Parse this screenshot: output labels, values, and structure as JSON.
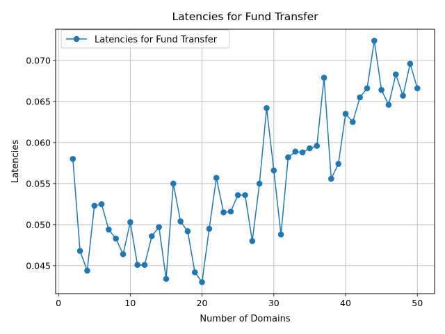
{
  "chart_data": {
    "type": "line",
    "title": "Latencies for Fund Transfer",
    "xlabel": "Number of Domains",
    "ylabel": "Latencies",
    "xlim": [
      -0.4,
      52.4
    ],
    "ylim": [
      0.0416,
      0.0738
    ],
    "xticks": [
      0,
      10,
      20,
      30,
      40,
      50
    ],
    "xtick_labels": [
      "0",
      "10",
      "20",
      "30",
      "40",
      "50"
    ],
    "yticks": [
      0.045,
      0.05,
      0.055,
      0.06,
      0.065,
      0.07
    ],
    "ytick_labels": [
      "0.045",
      "0.050",
      "0.055",
      "0.060",
      "0.065",
      "0.070"
    ],
    "grid": true,
    "legend_position": "upper-left",
    "series": [
      {
        "name": "Latencies for Fund Transfer",
        "color": "#1f77b4",
        "marker": "circle",
        "x": [
          2,
          3,
          4,
          5,
          6,
          7,
          8,
          9,
          10,
          11,
          12,
          13,
          14,
          15,
          16,
          17,
          18,
          19,
          20,
          21,
          22,
          23,
          24,
          25,
          26,
          27,
          28,
          29,
          30,
          31,
          32,
          33,
          34,
          35,
          36,
          37,
          38,
          39,
          40,
          41,
          42,
          43,
          44,
          45,
          46,
          47,
          48,
          49,
          50
        ],
        "y": [
          0.058,
          0.0468,
          0.0444,
          0.0523,
          0.0525,
          0.0494,
          0.0483,
          0.0464,
          0.0503,
          0.0451,
          0.0451,
          0.0486,
          0.0497,
          0.0434,
          0.055,
          0.0504,
          0.0492,
          0.0442,
          0.043,
          0.0495,
          0.0557,
          0.0515,
          0.0516,
          0.0536,
          0.0536,
          0.048,
          0.055,
          0.0642,
          0.0566,
          0.0488,
          0.0582,
          0.0589,
          0.0588,
          0.0593,
          0.0596,
          0.0679,
          0.0556,
          0.0574,
          0.0635,
          0.0625,
          0.0655,
          0.0666,
          0.0724,
          0.0664,
          0.0646,
          0.0683,
          0.0657,
          0.0696,
          0.0666
        ]
      }
    ]
  }
}
